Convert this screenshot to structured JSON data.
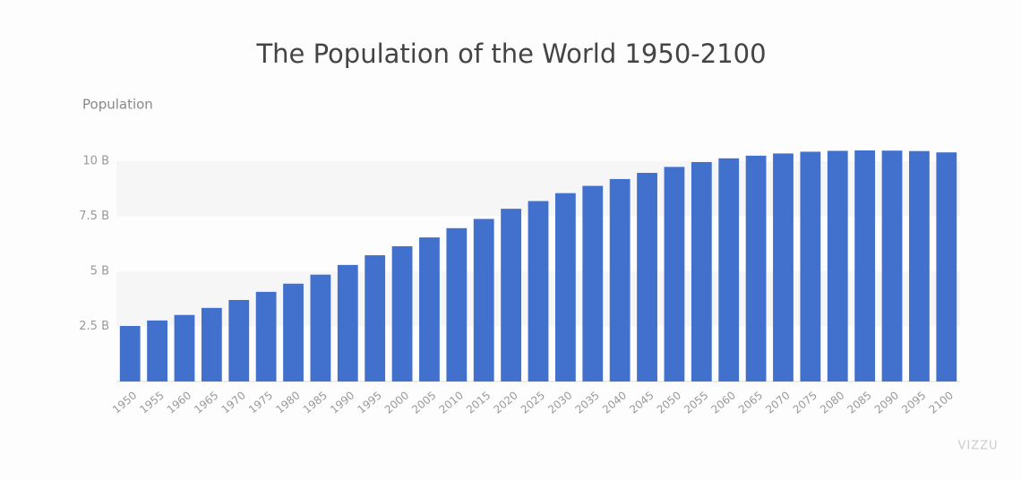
{
  "chart_data": {
    "type": "bar",
    "title": "The Population of the World 1950-2100",
    "y_label": "Population",
    "watermark": "VIZZU",
    "categories": [
      "1950",
      "1955",
      "1960",
      "1965",
      "1970",
      "1975",
      "1980",
      "1985",
      "1990",
      "1995",
      "2000",
      "2005",
      "2010",
      "2015",
      "2020",
      "2025",
      "2030",
      "2035",
      "2040",
      "2045",
      "2050",
      "2055",
      "2060",
      "2065",
      "2070",
      "2075",
      "2080",
      "2085",
      "2090",
      "2095",
      "2100"
    ],
    "values": [
      2.52,
      2.77,
      3.02,
      3.34,
      3.7,
      4.07,
      4.44,
      4.85,
      5.29,
      5.73,
      6.14,
      6.54,
      6.96,
      7.38,
      7.84,
      8.19,
      8.55,
      8.88,
      9.19,
      9.47,
      9.74,
      9.96,
      10.13,
      10.25,
      10.35,
      10.43,
      10.47,
      10.49,
      10.48,
      10.46,
      10.4
    ],
    "color": "#4171cd",
    "ylim": [
      0,
      10.5
    ],
    "yticks": [
      {
        "value": 2.5,
        "label": "2.5 B"
      },
      {
        "value": 5,
        "label": "5 B"
      },
      {
        "value": 7.5,
        "label": "7.5 B"
      },
      {
        "value": 10,
        "label": "10 B"
      }
    ],
    "grid": true
  }
}
